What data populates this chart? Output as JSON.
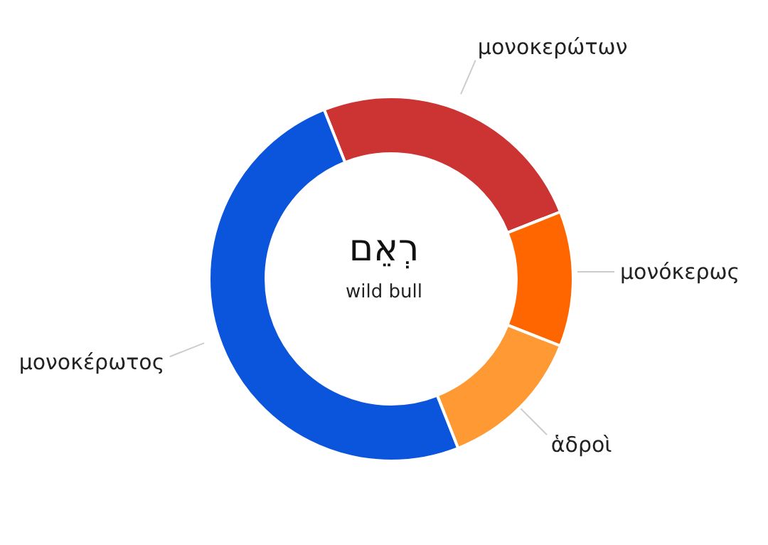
{
  "chart_data": {
    "type": "donut",
    "categories": [
      "μονοκερώτων",
      "μονόκερως",
      "ἁδροὶ",
      "μονοκέρωτος"
    ],
    "values": [
      25,
      12,
      13,
      50
    ],
    "colors": [
      "#cc3333",
      "#ff6600",
      "#ff9933",
      "#0b55dc"
    ],
    "annotations": [
      "רְאֵם",
      "wild bull"
    ]
  }
}
